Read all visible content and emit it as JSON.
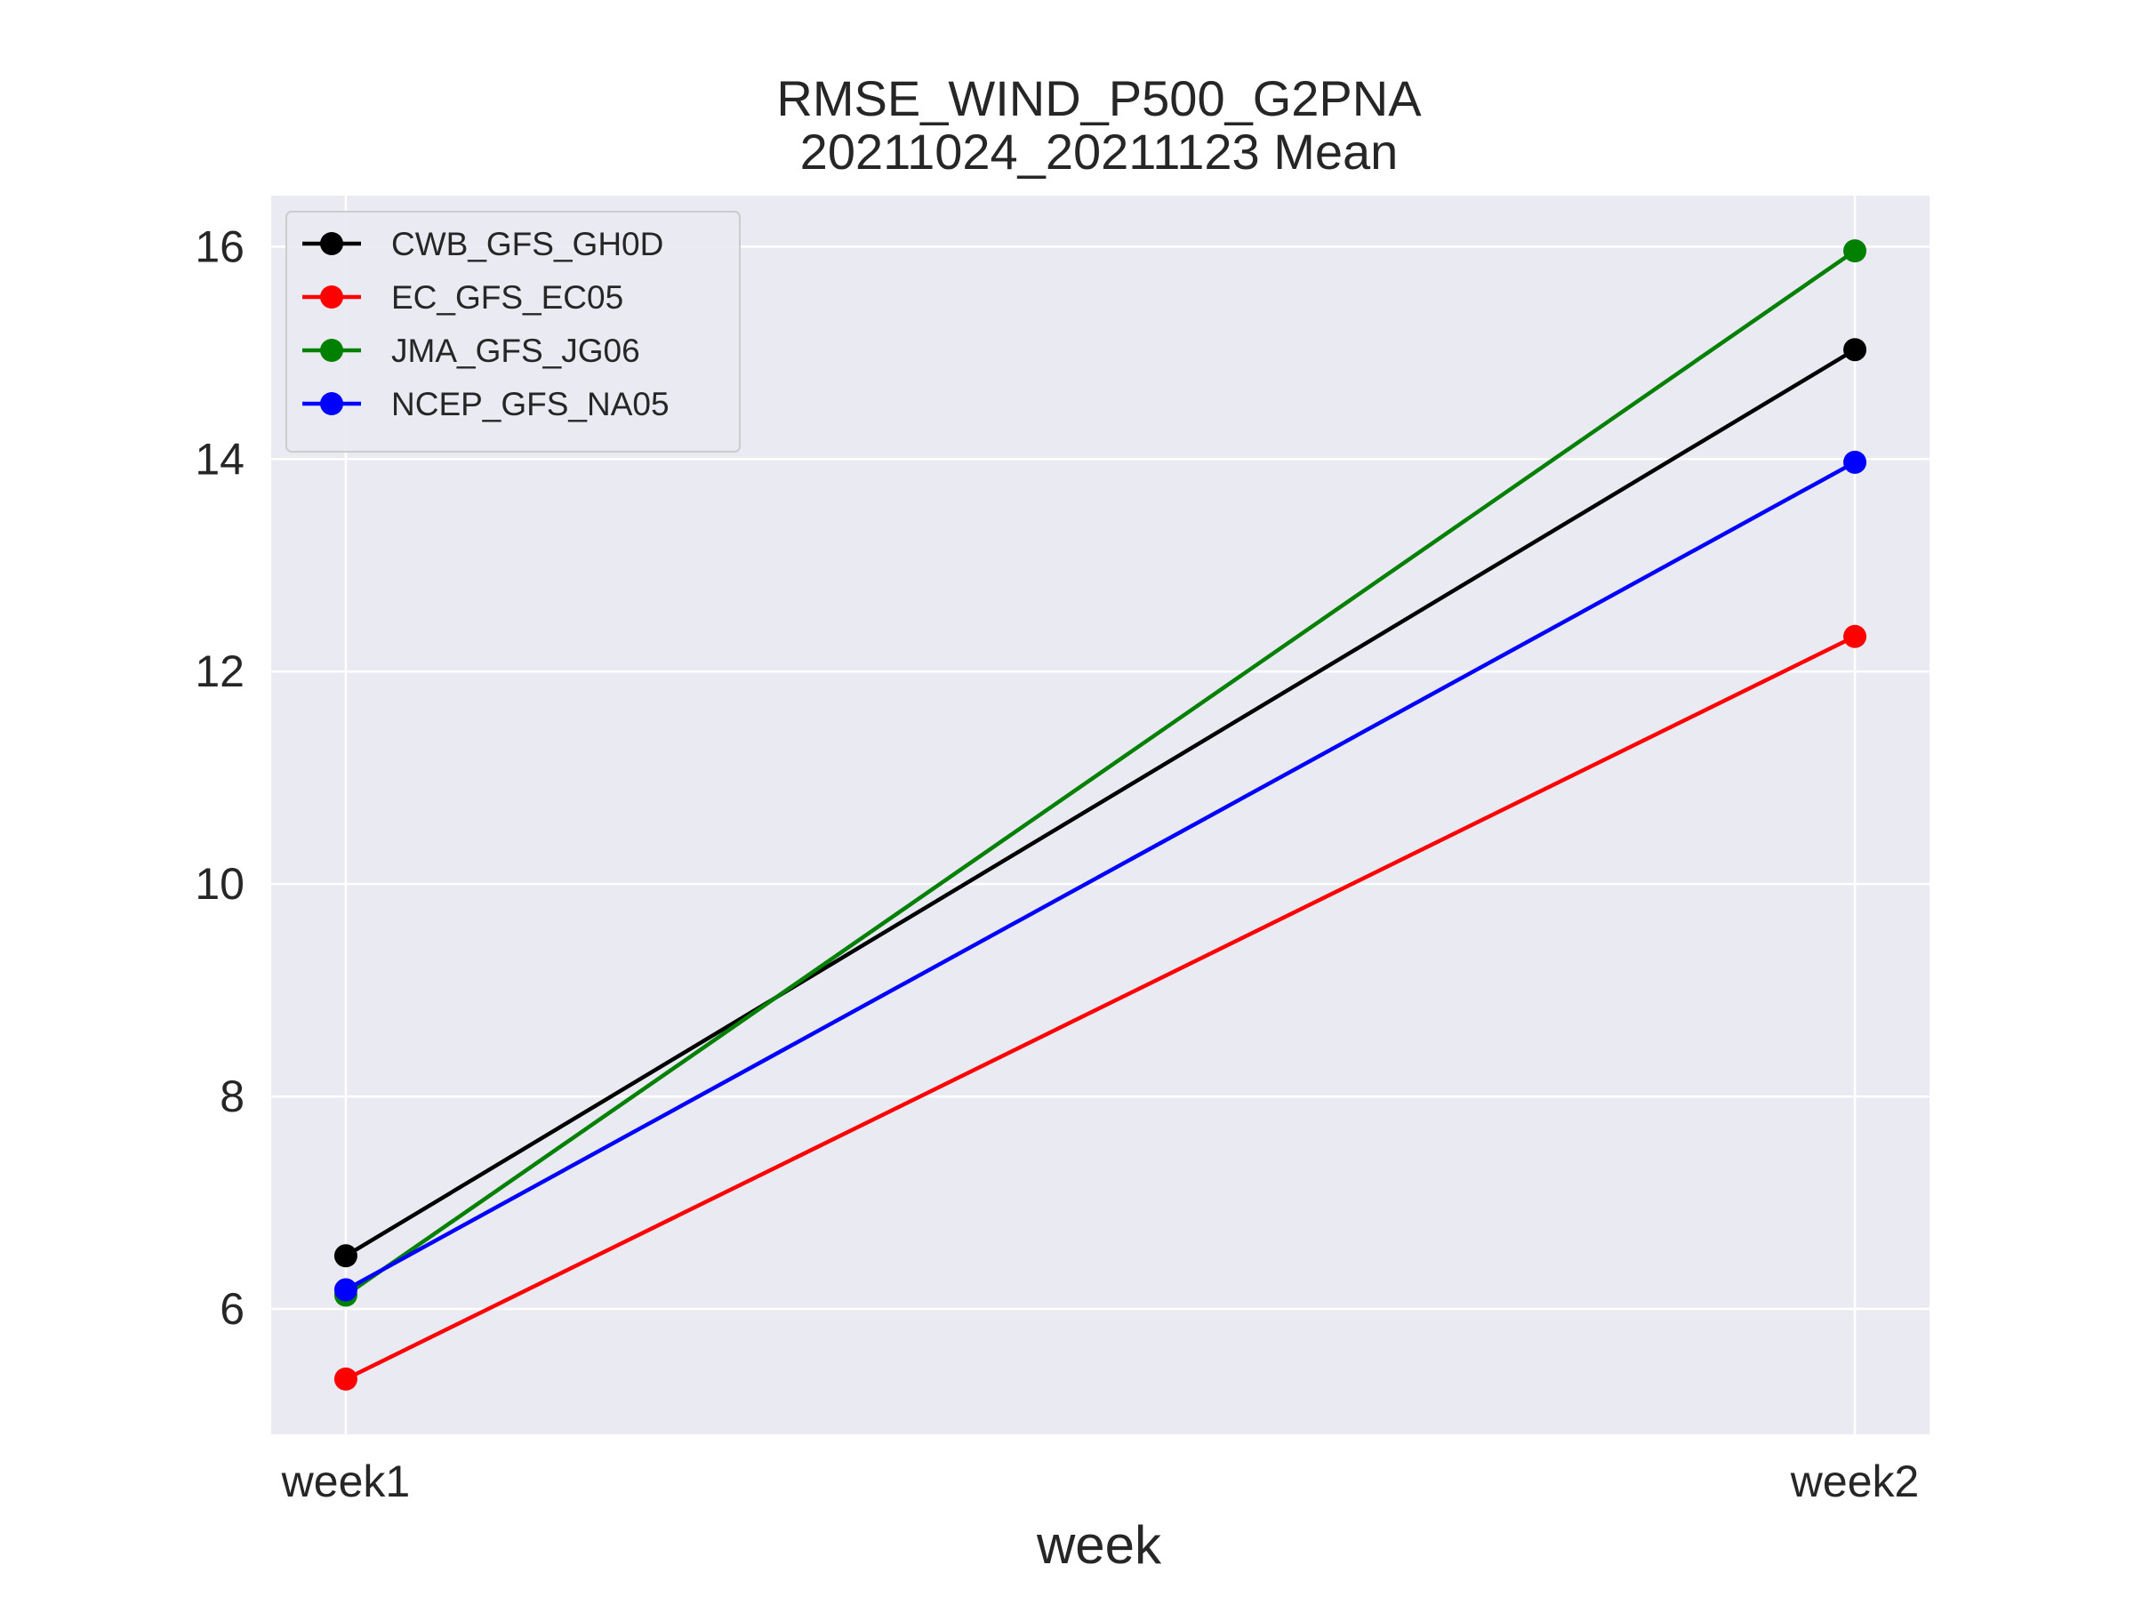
{
  "chart_data": {
    "type": "line",
    "title": "RMSE_WIND_P500_G2PNA",
    "subtitle": "20211024_20211123 Mean",
    "xlabel": "week",
    "ylabel": "",
    "categories": [
      "week1",
      "week2"
    ],
    "ylim": [
      4.82,
      16.48
    ],
    "yticks": [
      6,
      8,
      10,
      12,
      14,
      16
    ],
    "grid": true,
    "legend_position": "upper-left",
    "background_color": "#eaeaf2",
    "series": [
      {
        "name": "CWB_GFS_GH0D",
        "color": "#000000",
        "values": [
          6.5,
          15.03
        ]
      },
      {
        "name": "EC_GFS_EC05",
        "color": "#ff0000",
        "values": [
          5.34,
          12.33
        ]
      },
      {
        "name": "JMA_GFS_JG06",
        "color": "#008000",
        "values": [
          6.13,
          15.96
        ]
      },
      {
        "name": "NCEP_GFS_NA05",
        "color": "#0000ff",
        "values": [
          6.18,
          13.97
        ]
      }
    ]
  }
}
